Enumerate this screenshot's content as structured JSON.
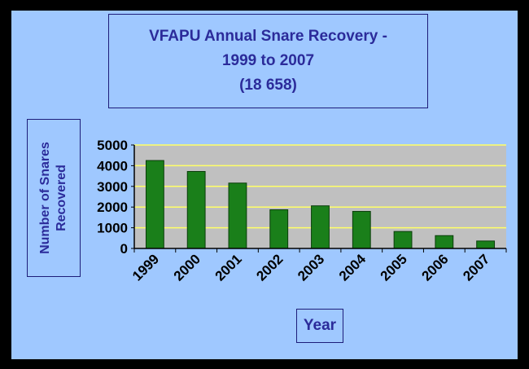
{
  "chart_data": {
    "type": "bar",
    "title_lines": [
      "VFAPU Annual Snare Recovery -",
      "1999 to 2007",
      "(18 658)"
    ],
    "xlabel": "Year",
    "ylabel_lines": [
      "Number of Snares",
      "Recovered"
    ],
    "categories": [
      "1999",
      "2000",
      "2001",
      "2002",
      "2003",
      "2004",
      "2005",
      "2006",
      "2007"
    ],
    "values": [
      4250,
      3720,
      3160,
      1870,
      2060,
      1790,
      820,
      620,
      360
    ],
    "ylim": [
      0,
      5000
    ],
    "yticks": [
      "0",
      "1000",
      "2000",
      "3000",
      "4000",
      "5000"
    ],
    "grid": true,
    "legend": "none",
    "colors": {
      "bar": "#1a7f1a",
      "plot_background": "#c0c0c0",
      "gridline": "#ffff66",
      "page_background": "#9fc8ff",
      "frame": "#000000",
      "title_text": "#2b2b9a"
    }
  }
}
